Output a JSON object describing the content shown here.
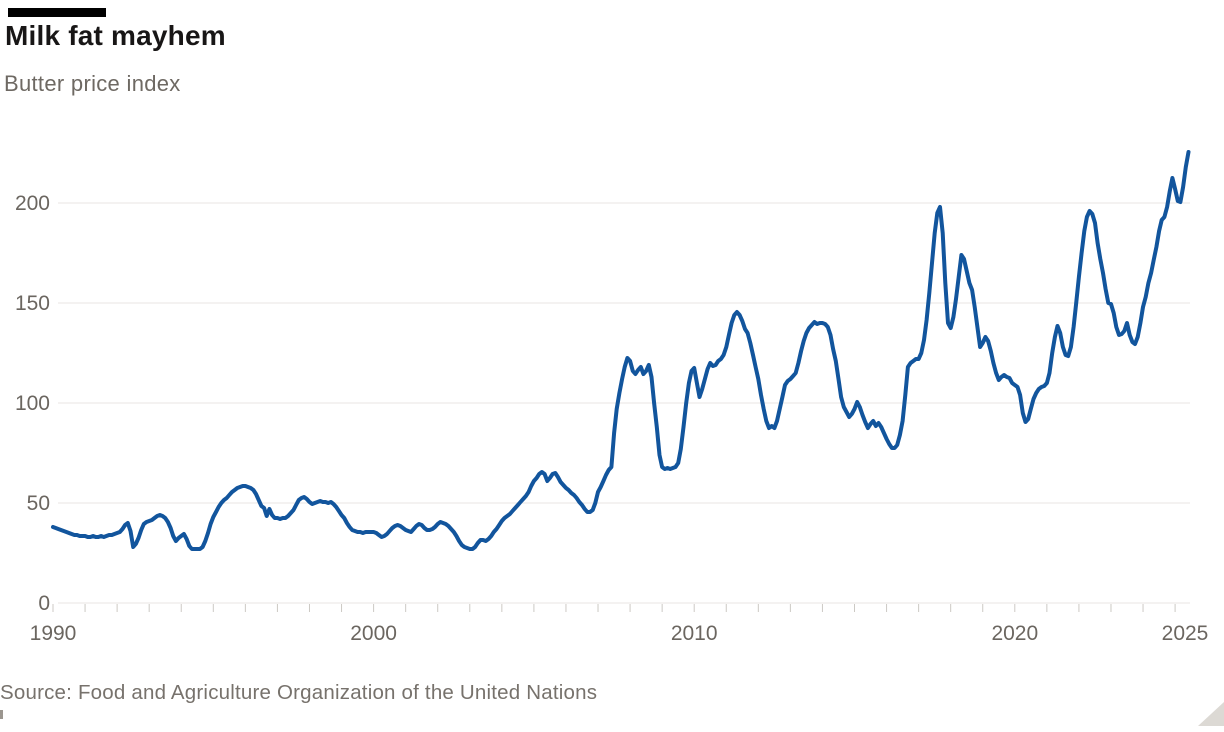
{
  "chart_data": {
    "type": "line",
    "title": "Milk fat mayhem",
    "subtitle": "Butter price index",
    "source": "Source: Food and Agriculture Organization of the United Nations",
    "xlabel": "",
    "ylabel": "",
    "x_range": [
      1990,
      2025.5
    ],
    "ylim": [
      0,
      229
    ],
    "y_ticks": [
      0,
      50,
      100,
      150,
      200
    ],
    "x_labeled_ticks": [
      1990,
      2000,
      2010,
      2020,
      2025
    ],
    "x_minor_ticks": "every year 1990-2025",
    "grid": "horizontal only",
    "legend": "none",
    "line_color": "#12559d",
    "grid_color": "#e8e6e3",
    "tick_color": "#ccc9c4",
    "axis_text_color": "#6b6660",
    "accent_bar_color": "#000000",
    "series": [
      {
        "name": "Butter price index",
        "frequency": "monthly",
        "start_year": 1990,
        "start_month": 1,
        "values": [
          38,
          37.5,
          37,
          36.5,
          36,
          35.5,
          35,
          34.5,
          34,
          34,
          33.5,
          33.5,
          33.5,
          33,
          33,
          33.5,
          33,
          33,
          33.5,
          33,
          33.5,
          34,
          34,
          34.5,
          35,
          35.5,
          37,
          39,
          40,
          36,
          28,
          29.5,
          32.5,
          36.5,
          39.5,
          40.5,
          41,
          41.5,
          42.5,
          43.5,
          44,
          43.5,
          42.5,
          40.5,
          37.5,
          33.5,
          31,
          32.5,
          33.5,
          34.5,
          32,
          28.5,
          27,
          27,
          27,
          27,
          28,
          31,
          35,
          39.5,
          43,
          45.5,
          48,
          50,
          51.5,
          52.5,
          54,
          55.5,
          56.5,
          57.5,
          58,
          58.5,
          58.5,
          58,
          57.5,
          56.5,
          54.5,
          51.5,
          48.5,
          47.5,
          43.5,
          47,
          44,
          42.5,
          42.5,
          42,
          42.5,
          42.5,
          43.5,
          45,
          46.5,
          49,
          51.5,
          52.5,
          53,
          52,
          50.5,
          49.5,
          50,
          50.5,
          51,
          50.5,
          50.5,
          50,
          50.5,
          49.5,
          48,
          46,
          44,
          42.5,
          40,
          38,
          36.5,
          36,
          35.5,
          35.5,
          35,
          35.5,
          35.5,
          35.5,
          35.5,
          35,
          34,
          33,
          33.5,
          34.5,
          36,
          37.5,
          38.5,
          39,
          38.5,
          37.5,
          36.5,
          36,
          35.5,
          37,
          38.5,
          39.5,
          39,
          37.5,
          36.5,
          36.5,
          37,
          38,
          39.5,
          40.5,
          40,
          39.5,
          38.5,
          37,
          35.5,
          33.5,
          31,
          29,
          28,
          27.5,
          27,
          27,
          28,
          30,
          31.5,
          31.5,
          31,
          32,
          33.5,
          35.5,
          37,
          39,
          41,
          42.5,
          43.5,
          44.5,
          46,
          47.5,
          49,
          50.5,
          52,
          53.5,
          55.5,
          58.5,
          61,
          62.5,
          64.5,
          65.5,
          64.5,
          61,
          62.5,
          64.5,
          65,
          63,
          60.5,
          59,
          57.5,
          56.5,
          55,
          54,
          52.5,
          50.5,
          49,
          47,
          45.5,
          45.5,
          46.5,
          50,
          55.5,
          58,
          61,
          64,
          66.5,
          68,
          85,
          97,
          105,
          112,
          118,
          122.5,
          121,
          116,
          114.5,
          116.5,
          118,
          114.5,
          116,
          119,
          113,
          100,
          88,
          74,
          68,
          67,
          67.5,
          67,
          67.5,
          68,
          70,
          77,
          88,
          100,
          110,
          116,
          117.5,
          110,
          103,
          107,
          112,
          117,
          120,
          118.5,
          119,
          121,
          122,
          124,
          128,
          134,
          140,
          144,
          145.5,
          144,
          141,
          137,
          135,
          130,
          124,
          118,
          112,
          104,
          97,
          91,
          87.5,
          88.5,
          87.5,
          91,
          97,
          103,
          109,
          111,
          112,
          113.5,
          115,
          120,
          126,
          131,
          135,
          137.5,
          139,
          140.5,
          139.5,
          140,
          140,
          139.5,
          138,
          134,
          127,
          121,
          112,
          103,
          98,
          95.5,
          93,
          94.5,
          97,
          100.5,
          98,
          94,
          90.5,
          87.5,
          89.5,
          91,
          88.5,
          90,
          88,
          85,
          82,
          79.5,
          77.5,
          77.5,
          79,
          84,
          91,
          104,
          118,
          120,
          121,
          122,
          122,
          125,
          131.5,
          141.5,
          155,
          170,
          185,
          195,
          198,
          185,
          160,
          140,
          137.5,
          143,
          152,
          163,
          174,
          172,
          166,
          160,
          156.5,
          148,
          138,
          128,
          130,
          133,
          131,
          126,
          120,
          115,
          111.5,
          113,
          114,
          113,
          112.5,
          110,
          109,
          108,
          104,
          95,
          90.5,
          92,
          97,
          102,
          105,
          107,
          108,
          108.5,
          110,
          115,
          125,
          133,
          138.5,
          135,
          128,
          124,
          123.5,
          128,
          138,
          150,
          163,
          175,
          186,
          193,
          196,
          194.5,
          190,
          180,
          172,
          165,
          157,
          150,
          149.5,
          145,
          138,
          134,
          134.5,
          136,
          140,
          134,
          130.5,
          129.5,
          133,
          140,
          148,
          153,
          160,
          165,
          171.5,
          178,
          186,
          191.5,
          193,
          198,
          206,
          212.5,
          207,
          201,
          200.5,
          208,
          218,
          225.5
        ]
      }
    ]
  }
}
